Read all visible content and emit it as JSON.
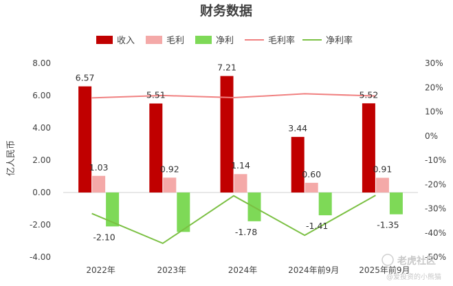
{
  "chart_data": {
    "type": "bar",
    "title": "财务数据",
    "categories": [
      "2022年",
      "2023年",
      "2024年",
      "2024年前9月",
      "2025年前9月"
    ],
    "ylabel": "亿人民币",
    "ylim": [
      -4,
      8
    ],
    "y_ticks": [
      "8.00",
      "6.00",
      "4.00",
      "2.00",
      "0.00",
      "-2.00",
      "-4.00"
    ],
    "y2lim": [
      -50,
      30
    ],
    "y2_ticks": [
      "30%",
      "20%",
      "10%",
      "0%",
      "-10%",
      "-20%",
      "-30%",
      "-40%",
      "-50%"
    ],
    "legend_position": "top",
    "grid": false,
    "series": [
      {
        "name": "收入",
        "kind": "bar",
        "axis": "left",
        "color": "#c00000",
        "values": [
          6.57,
          5.51,
          7.21,
          3.44,
          5.52
        ],
        "labels": [
          "6.57",
          "5.51",
          "7.21",
          "3.44",
          "5.52"
        ]
      },
      {
        "name": "毛利",
        "kind": "bar",
        "axis": "left",
        "color": "#f4a9a8",
        "values": [
          1.03,
          0.92,
          1.14,
          0.6,
          0.91
        ],
        "labels": [
          "1.03",
          "0.92",
          "1.14",
          "0.60",
          "0.91"
        ]
      },
      {
        "name": "净利",
        "kind": "bar",
        "axis": "left",
        "color": "#7ed957",
        "values": [
          -2.1,
          -2.44,
          -1.78,
          -1.41,
          -1.35
        ],
        "labels": [
          "-2.10",
          "",
          "-1.78",
          "-1.41",
          "-1.35"
        ]
      },
      {
        "name": "毛利率",
        "kind": "line",
        "axis": "right",
        "color": "#f08080",
        "values": [
          15.7,
          16.7,
          15.8,
          17.4,
          16.5
        ]
      },
      {
        "name": "净利率",
        "kind": "line",
        "axis": "right",
        "color": "#7bc043",
        "values": [
          -32,
          -44.3,
          -24.7,
          -41,
          -24.5
        ]
      }
    ]
  },
  "watermark": {
    "brand": "老虎社区",
    "user": "@爱投资的小熊猫"
  }
}
